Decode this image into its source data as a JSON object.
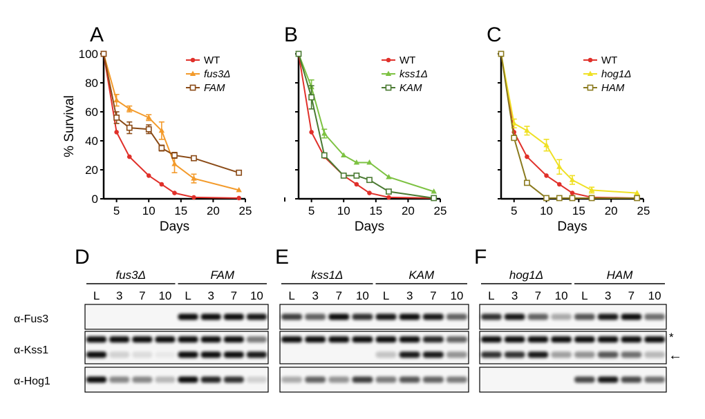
{
  "figure": {
    "xlabel": "Days",
    "ylabel": "% Survival",
    "xticks": [
      "5",
      "10",
      "15",
      "20",
      "25"
    ],
    "yticks": [
      "0",
      "20",
      "40",
      "60",
      "80",
      "100"
    ],
    "colors": {
      "WT": "#e0302a",
      "fus3": "#f39a2a",
      "FAM": "#8a4a16",
      "kss1": "#7dc242",
      "KAM": "#4a7a32",
      "hog1": "#efe024",
      "HAM": "#8a7a1e"
    }
  },
  "chart_data": [
    {
      "type": "line",
      "panel": "A",
      "xlabel": "Days",
      "ylabel": "% Survival",
      "xlim": [
        3,
        25
      ],
      "ylim": [
        0,
        100
      ],
      "series": [
        {
          "name": "WT",
          "name_italic": "",
          "color": "#e0302a",
          "marker": "circle",
          "x": [
            3,
            5,
            7,
            10,
            12,
            14,
            17,
            24
          ],
          "y": [
            100,
            46,
            29,
            16,
            10,
            4,
            1,
            0.5
          ],
          "err": [
            0,
            0,
            0,
            0,
            0,
            0,
            0,
            0
          ]
        },
        {
          "name": "fus3Δ",
          "name_italic": "fus3Δ",
          "color": "#f39a2a",
          "marker": "triangle",
          "x": [
            3,
            5,
            7,
            10,
            12,
            14,
            17,
            24
          ],
          "y": [
            100,
            68,
            62,
            56,
            47,
            24,
            14,
            6
          ],
          "err": [
            0,
            4,
            2,
            2,
            6,
            6,
            3,
            0
          ]
        },
        {
          "name": "FAM",
          "name_italic": "FAM",
          "color": "#8a4a16",
          "marker": "square",
          "x": [
            3,
            5,
            7,
            10,
            12,
            14,
            17,
            24
          ],
          "y": [
            100,
            56,
            49,
            48,
            35,
            30,
            28,
            18
          ],
          "err": [
            0,
            4,
            4,
            3,
            2,
            2,
            1,
            1
          ]
        }
      ]
    },
    {
      "type": "line",
      "panel": "B",
      "xlabel": "Days",
      "ylabel": "",
      "xlim": [
        3,
        25
      ],
      "ylim": [
        0,
        100
      ],
      "series": [
        {
          "name": "WT",
          "name_italic": "",
          "color": "#e0302a",
          "marker": "circle",
          "x": [
            3,
            5,
            7,
            10,
            12,
            14,
            17,
            24
          ],
          "y": [
            100,
            46,
            29,
            16,
            10,
            4,
            1,
            0.5
          ],
          "err": [
            0,
            0,
            0,
            0,
            0,
            0,
            0,
            0
          ]
        },
        {
          "name": "kss1Δ",
          "name_italic": "kss1Δ",
          "color": "#7dc242",
          "marker": "triangle",
          "x": [
            3,
            5,
            7,
            10,
            12,
            14,
            17,
            24
          ],
          "y": [
            100,
            77,
            45,
            30,
            25,
            25,
            15,
            5
          ],
          "err": [
            0,
            5,
            3,
            0,
            0,
            0,
            0,
            0
          ]
        },
        {
          "name": "KAM",
          "name_italic": "KAM",
          "color": "#4a7a32",
          "marker": "square",
          "x": [
            3,
            5,
            7,
            10,
            12,
            14,
            17,
            24
          ],
          "y": [
            100,
            70,
            30,
            16,
            16,
            13,
            5,
            0.5
          ],
          "err": [
            0,
            8,
            1,
            1,
            1,
            1,
            1,
            0
          ]
        }
      ]
    },
    {
      "type": "line",
      "panel": "C",
      "xlabel": "Days",
      "ylabel": "",
      "xlim": [
        3,
        25
      ],
      "ylim": [
        0,
        100
      ],
      "series": [
        {
          "name": "WT",
          "name_italic": "",
          "color": "#e0302a",
          "marker": "circle",
          "x": [
            3,
            5,
            7,
            10,
            12,
            14,
            17,
            24
          ],
          "y": [
            100,
            46,
            29,
            16,
            10,
            4,
            1,
            0.5
          ],
          "err": [
            0,
            0,
            0,
            0,
            0,
            0,
            0,
            0
          ]
        },
        {
          "name": "hog1Δ",
          "name_italic": "hog1Δ",
          "color": "#efe024",
          "marker": "triangle",
          "x": [
            3,
            5,
            7,
            10,
            12,
            14,
            17,
            24
          ],
          "y": [
            100,
            52,
            47,
            37,
            22,
            13,
            6,
            4
          ],
          "err": [
            0,
            3,
            3,
            4,
            5,
            3,
            2,
            0
          ]
        },
        {
          "name": "HAM",
          "name_italic": "HAM",
          "color": "#8a7a1e",
          "marker": "square",
          "x": [
            3,
            5,
            7,
            10,
            12,
            14,
            17,
            24
          ],
          "y": [
            100,
            42,
            11,
            0.5,
            0.5,
            0.5,
            0.5,
            0.5
          ],
          "err": [
            0,
            0,
            0,
            0,
            0,
            0,
            0,
            0
          ]
        }
      ]
    }
  ],
  "blots": [
    {
      "panel": "D",
      "groups": [
        {
          "strain": "fus3Δ",
          "lanes": [
            "L",
            "3",
            "7",
            "10"
          ]
        },
        {
          "strain": "FAM",
          "lanes": [
            "L",
            "3",
            "7",
            "10"
          ]
        }
      ]
    },
    {
      "panel": "E",
      "groups": [
        {
          "strain": "kss1Δ",
          "lanes": [
            "L",
            "3",
            "7",
            "10"
          ]
        },
        {
          "strain": "KAM",
          "lanes": [
            "L",
            "3",
            "7",
            "10"
          ]
        }
      ]
    },
    {
      "panel": "F",
      "groups": [
        {
          "strain": "hog1Δ",
          "lanes": [
            "L",
            "3",
            "7",
            "10"
          ]
        },
        {
          "strain": "HAM",
          "lanes": [
            "L",
            "3",
            "7",
            "10"
          ]
        }
      ]
    }
  ],
  "blot_rows": [
    "α-Fus3",
    "α-Kss1",
    "α-Hog1"
  ],
  "blot_marks": {
    "asterisk": "*",
    "arrow": "←"
  },
  "band_intensity": {
    "D": [
      [
        0,
        0,
        0,
        0,
        0.95,
        0.95,
        0.95,
        0.9
      ],
      [
        0.95,
        0.95,
        0.95,
        0.95,
        0.95,
        0.95,
        0.95,
        0.5
      ],
      [
        0.95,
        0.15,
        0.1,
        0.05,
        0.95,
        0.95,
        0.95,
        0.9
      ],
      [
        0.95,
        0.45,
        0.45,
        0.25,
        0.95,
        0.85,
        0.8,
        0.15
      ]
    ],
    "E": [
      [
        0.75,
        0.6,
        0.95,
        0.8,
        0.9,
        0.95,
        0.9,
        0.6
      ],
      [
        0.95,
        0.95,
        0.95,
        0.95,
        0.95,
        0.95,
        0.85,
        0.6
      ],
      [
        0,
        0,
        0,
        0,
        0.2,
        0.9,
        0.9,
        0.4
      ],
      [
        0.3,
        0.6,
        0.4,
        0.75,
        0.5,
        0.65,
        0.6,
        0.5
      ]
    ],
    "F": [
      [
        0.8,
        0.9,
        0.6,
        0.3,
        0.65,
        0.9,
        0.95,
        0.55
      ],
      [
        0.95,
        0.95,
        0.95,
        0.95,
        0.95,
        0.95,
        0.95,
        0.95
      ],
      [
        0.8,
        0.8,
        0.9,
        0.35,
        0.4,
        0.65,
        0.55,
        0.25
      ],
      [
        0,
        0,
        0,
        0,
        0.7,
        0.9,
        0.7,
        0.55
      ]
    ]
  }
}
